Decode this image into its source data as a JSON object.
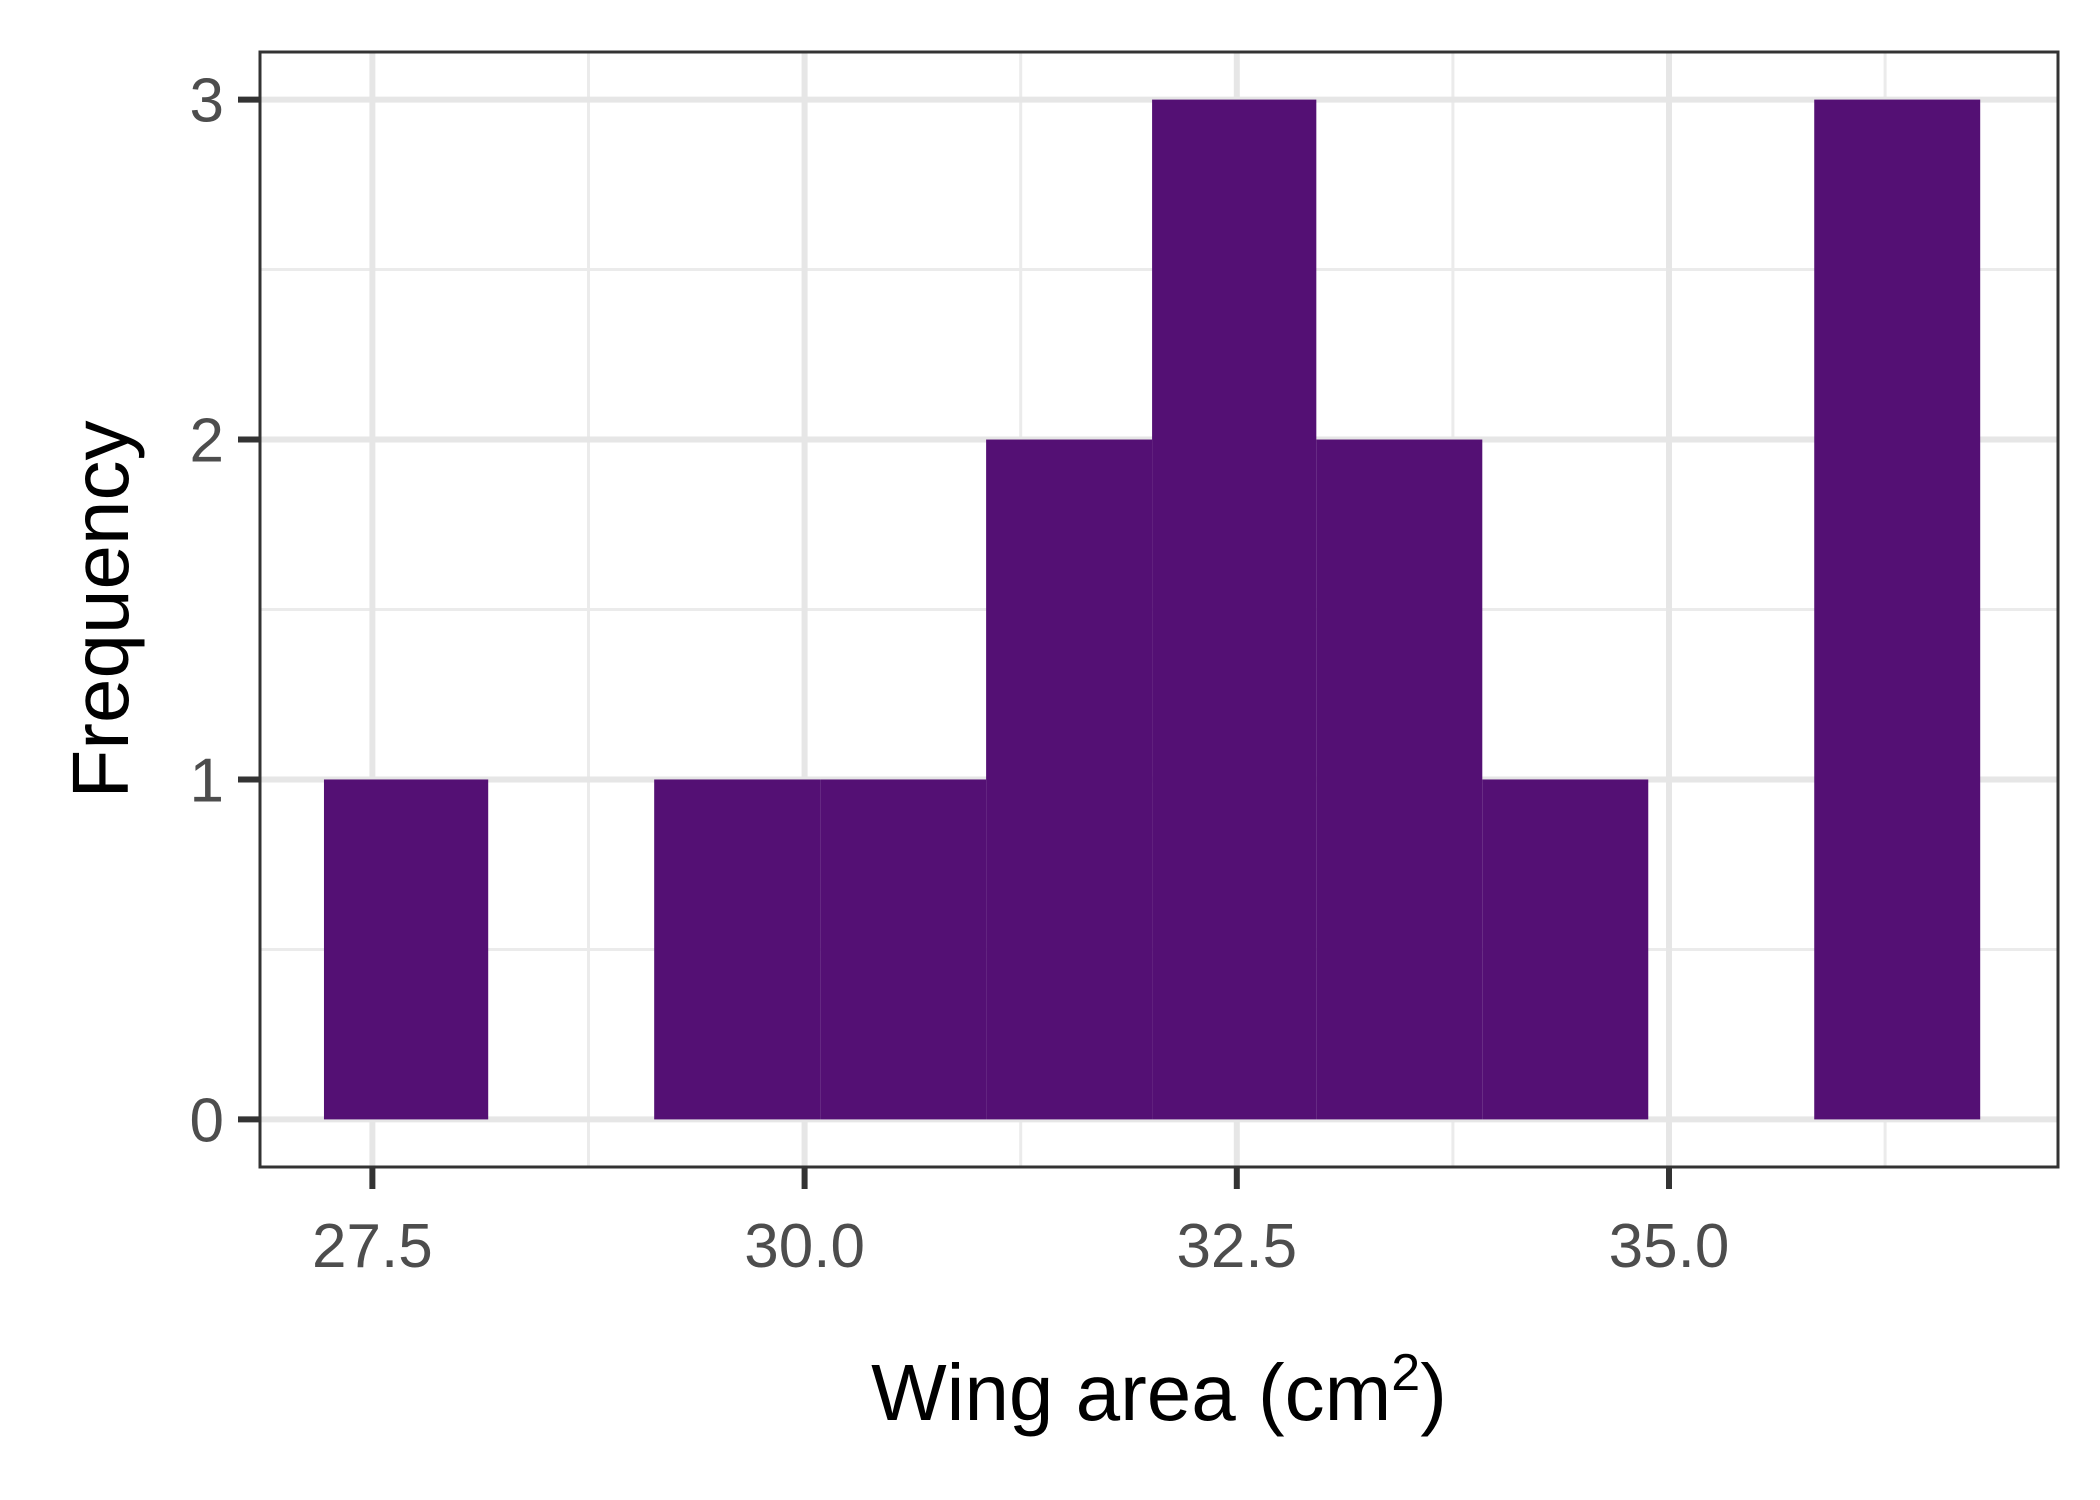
{
  "chart_data": {
    "type": "bar",
    "subtype": "histogram",
    "title": "",
    "xlabel": "Wing area (cm",
    "xlabel_superscript": "2",
    "xlabel_suffix": ")",
    "ylabel": "Frequency",
    "xlim": [
      26.85,
      37.25
    ],
    "ylim": [
      -0.14,
      3.14
    ],
    "x_ticks": [
      27.5,
      30.0,
      32.5,
      35.0
    ],
    "x_tick_labels": [
      "27.5",
      "30.0",
      "32.5",
      "35.0"
    ],
    "y_ticks": [
      0,
      1,
      2,
      3
    ],
    "y_tick_labels": [
      "0",
      "1",
      "2",
      "3"
    ],
    "x_minor_gridlines": [
      28.75,
      31.25,
      33.75,
      36.25
    ],
    "y_minor_gridlines": [
      0.5,
      1.5,
      2.5
    ],
    "bin_width": 0.958,
    "bins": [
      {
        "x_start": 27.22,
        "x_end": 28.17,
        "count": 1
      },
      {
        "x_start": 28.17,
        "x_end": 29.13,
        "count": 0
      },
      {
        "x_start": 29.13,
        "x_end": 30.09,
        "count": 1
      },
      {
        "x_start": 30.09,
        "x_end": 31.05,
        "count": 1
      },
      {
        "x_start": 31.05,
        "x_end": 32.01,
        "count": 2
      },
      {
        "x_start": 32.01,
        "x_end": 32.96,
        "count": 3
      },
      {
        "x_start": 32.96,
        "x_end": 33.92,
        "count": 2
      },
      {
        "x_start": 33.92,
        "x_end": 34.88,
        "count": 1
      },
      {
        "x_start": 34.88,
        "x_end": 35.84,
        "count": 0
      },
      {
        "x_start": 35.84,
        "x_end": 36.8,
        "count": 3
      }
    ],
    "grid": true,
    "legend": "none",
    "colors": {
      "bar_fill": "#541074",
      "panel_background": "#ffffff",
      "grid_major": "#e6e6e6",
      "grid_minor": "#ebebeb",
      "panel_border": "#333333",
      "tick_mark": "#333333",
      "tick_label": "#4d4d4d",
      "axis_title": "#000000"
    }
  }
}
